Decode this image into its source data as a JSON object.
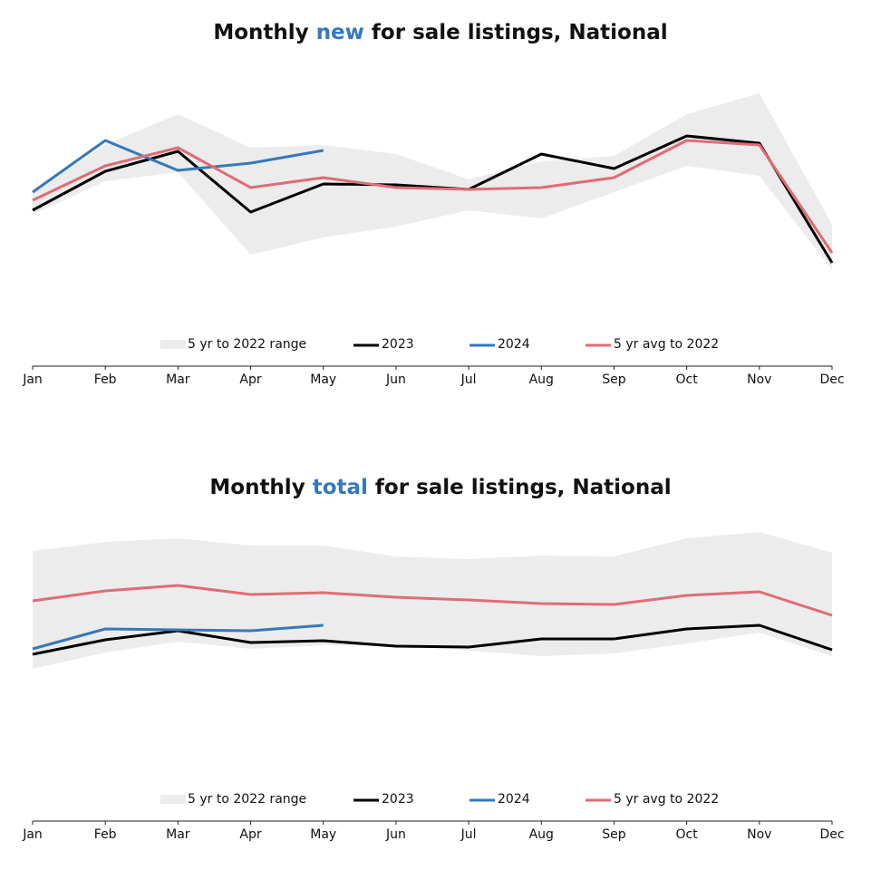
{
  "chart_data": [
    {
      "type": "line",
      "title": [
        {
          "text": "Monthly "
        },
        {
          "text": "new",
          "color": "#3578bd"
        },
        {
          "text": " for sale listings, National"
        }
      ],
      "categories": [
        "Jan",
        "Feb",
        "Mar",
        "Apr",
        "May",
        "Jun",
        "Jul",
        "Aug",
        "Sep",
        "Oct",
        "Nov",
        "Dec"
      ],
      "ylim": [
        0,
        320
      ],
      "range": {
        "name": "5 yr to 2022 range",
        "color": "#ececec",
        "low": [
          167,
          204,
          214,
          123,
          142,
          154,
          172,
          163,
          192,
          221,
          210,
          106
        ],
        "high": [
          192,
          244,
          278,
          241,
          244,
          234,
          206,
          226,
          232,
          278,
          301,
          156
        ]
      },
      "series": [
        {
          "name": "2023",
          "color": "#000000",
          "values": [
            172,
            215,
            237,
            170,
            201,
            200,
            195,
            234,
            218,
            254,
            246,
            114
          ]
        },
        {
          "name": "2024",
          "color": "#3578bd",
          "values": [
            192,
            249,
            216,
            224,
            238,
            null,
            null,
            null,
            null,
            null,
            null,
            null
          ]
        },
        {
          "name": "5 yr avg to 2022",
          "color": "#e06c75",
          "values": [
            183,
            221,
            241,
            197,
            208,
            197,
            195,
            197,
            208,
            249,
            244,
            125
          ]
        }
      ]
    },
    {
      "type": "line",
      "title": [
        {
          "text": "Monthly "
        },
        {
          "text": "total",
          "color": "#3578bd"
        },
        {
          "text": " for sale listings, National"
        }
      ],
      "categories": [
        "Jan",
        "Feb",
        "Mar",
        "Apr",
        "May",
        "Jun",
        "Jul",
        "Aug",
        "Sep",
        "Oct",
        "Nov",
        "Dec"
      ],
      "ylim": [
        0,
        320
      ],
      "range": {
        "name": "5 yr to 2022 range",
        "color": "#ececec",
        "low": [
          168,
          186,
          198,
          190,
          194,
          194,
          188,
          182,
          185,
          196,
          208,
          182
        ],
        "high": [
          298,
          308,
          312,
          304,
          304,
          292,
          289,
          293,
          292,
          312,
          319,
          296
        ]
      },
      "series": [
        {
          "name": "2023",
          "color": "#000000",
          "values": [
            184,
            200,
            210,
            197,
            199,
            193,
            192,
            201,
            201,
            212,
            216,
            189
          ]
        },
        {
          "name": "2024",
          "color": "#3578bd",
          "values": [
            190,
            212,
            211,
            210,
            216,
            null,
            null,
            null,
            null,
            null,
            null,
            null
          ]
        },
        {
          "name": "5 yr avg to 2022",
          "color": "#e06c75",
          "values": [
            243,
            254,
            260,
            250,
            252,
            247,
            244,
            240,
            239,
            249,
            253,
            227
          ]
        }
      ]
    }
  ]
}
